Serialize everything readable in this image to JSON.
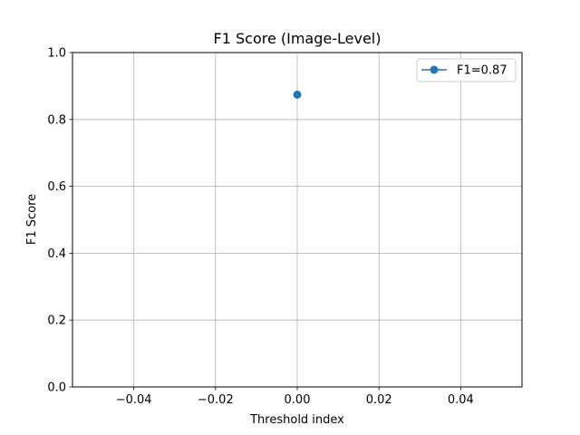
{
  "chart_data": {
    "type": "line",
    "title": "F1 Score (Image-Level)",
    "xlabel": "Threshold index",
    "ylabel": "F1 Score",
    "xlim": [
      -0.055,
      0.055
    ],
    "ylim": [
      0.0,
      1.0
    ],
    "xticks": [
      -0.04,
      -0.02,
      0.0,
      0.02,
      0.04
    ],
    "xtick_labels": [
      "−0.04",
      "−0.02",
      "0.00",
      "0.02",
      "0.04"
    ],
    "yticks": [
      0.0,
      0.2,
      0.4,
      0.6,
      0.8,
      1.0
    ],
    "ytick_labels": [
      "0.0",
      "0.2",
      "0.4",
      "0.6",
      "0.8",
      "1.0"
    ],
    "grid": true,
    "legend_position": "top-right",
    "series": [
      {
        "name": "F1=0.87",
        "x": [
          0
        ],
        "y": [
          0.874
        ],
        "color": "#1f77b4",
        "marker": "circle"
      }
    ]
  }
}
